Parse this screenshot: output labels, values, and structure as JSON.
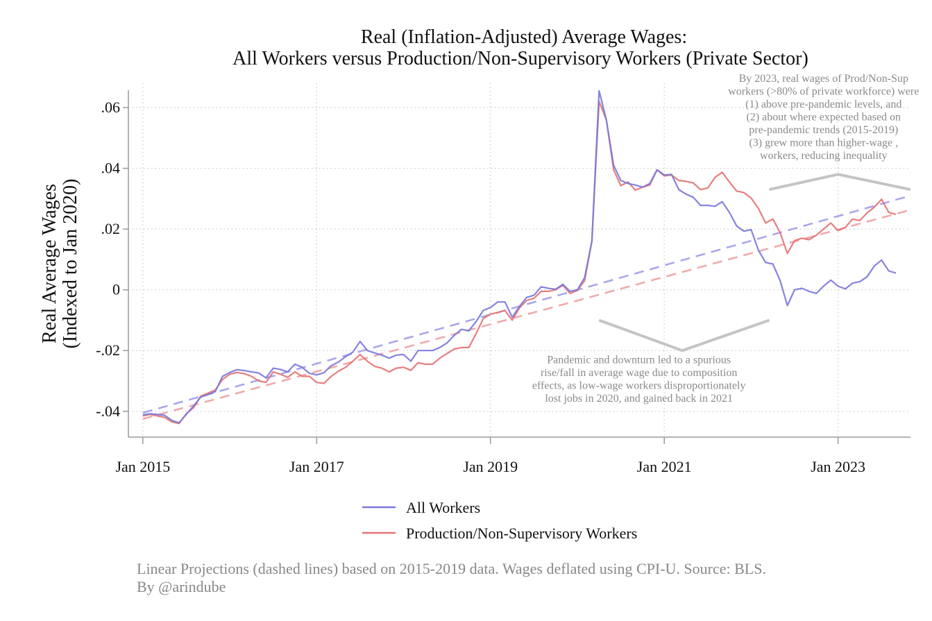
{
  "colors": {
    "all_workers": "#7b78db",
    "production": "#e57373",
    "all_workers_projection": "#a9a7ec",
    "production_projection": "#f0aaaa",
    "grid": "#c8c8c8",
    "axis": "#9a9a9a",
    "bracket": "#c4c4c4",
    "annotation": "#8a8a8a",
    "footer": "#888888"
  },
  "chart_data": {
    "type": "line",
    "title": [
      "Real (Inflation-Adjusted) Average Wages:",
      "All Workers versus Production/Non-Supervisory Workers (Private Sector)"
    ],
    "ylabel": [
      "Real Average Wages",
      "(Indexed to Jan 2020)"
    ],
    "xlabel": "",
    "x_unit": "month (Jan 2015 = 0)",
    "xlim": [
      -2,
      106
    ],
    "ylim": [
      -0.0485,
      0.068
    ],
    "grid": true,
    "legend_position": "bottom",
    "x_ticks": [
      {
        "value": 0,
        "label": "Jan 2015"
      },
      {
        "value": 24,
        "label": "Jan 2017"
      },
      {
        "value": 48,
        "label": "Jan 2019"
      },
      {
        "value": 72,
        "label": "Jan 2021"
      },
      {
        "value": 96,
        "label": "Jan 2023"
      }
    ],
    "y_ticks": [
      {
        "value": -0.04,
        "label": "-.04"
      },
      {
        "value": -0.02,
        "label": "-.02"
      },
      {
        "value": 0,
        "label": "0"
      },
      {
        "value": 0.02,
        "label": ".02"
      },
      {
        "value": 0.04,
        "label": ".04"
      },
      {
        "value": 0.06,
        "label": ".06"
      }
    ],
    "series": [
      {
        "name": "All Workers",
        "x_start": 0,
        "values": [
          -0.0412,
          -0.0408,
          -0.041,
          -0.0413,
          -0.043,
          -0.0438,
          -0.041,
          -0.0382,
          -0.0353,
          -0.0345,
          -0.0335,
          -0.0285,
          -0.0272,
          -0.0263,
          -0.0266,
          -0.027,
          -0.0274,
          -0.029,
          -0.0258,
          -0.0262,
          -0.027,
          -0.0245,
          -0.0255,
          -0.0275,
          -0.028,
          -0.0273,
          -0.025,
          -0.0238,
          -0.022,
          -0.0205,
          -0.017,
          -0.02,
          -0.0208,
          -0.0215,
          -0.0225,
          -0.0215,
          -0.0213,
          -0.0235,
          -0.02,
          -0.02,
          -0.02,
          -0.019,
          -0.0175,
          -0.015,
          -0.013,
          -0.0135,
          -0.0105,
          -0.0068,
          -0.0058,
          -0.004,
          -0.004,
          -0.009,
          -0.0055,
          -0.0025,
          -0.0018,
          0.001,
          0.0005,
          0.0002,
          0.0018,
          -0.0005,
          0.0,
          0.004,
          0.016,
          0.0655,
          0.056,
          0.041,
          0.036,
          0.035,
          0.0345,
          0.0338,
          0.035,
          0.0395,
          0.0378,
          0.038,
          0.033,
          0.0315,
          0.0305,
          0.0278,
          0.0278,
          0.0275,
          0.029,
          0.0255,
          0.021,
          0.0193,
          0.0198,
          0.013,
          0.009,
          0.0085,
          0.003,
          -0.0052,
          0.0,
          0.0005,
          -0.0005,
          -0.0012,
          0.0012,
          0.0032,
          0.0012,
          0.0003,
          0.0022,
          0.0027,
          0.0043,
          0.0078,
          0.0098,
          0.0062,
          0.0055
        ]
      },
      {
        "name": "Production/Non-Supervisory Workers",
        "x_start": 0,
        "values": [
          -0.0415,
          -0.041,
          -0.0415,
          -0.042,
          -0.0435,
          -0.044,
          -0.0408,
          -0.0388,
          -0.035,
          -0.034,
          -0.033,
          -0.0295,
          -0.0278,
          -0.0272,
          -0.0276,
          -0.0285,
          -0.03,
          -0.0305,
          -0.027,
          -0.0278,
          -0.0288,
          -0.027,
          -0.0285,
          -0.0285,
          -0.0305,
          -0.0308,
          -0.0285,
          -0.0268,
          -0.0255,
          -0.0235,
          -0.0213,
          -0.0235,
          -0.0252,
          -0.0258,
          -0.027,
          -0.0258,
          -0.0255,
          -0.0265,
          -0.024,
          -0.0245,
          -0.0245,
          -0.0225,
          -0.021,
          -0.0195,
          -0.019,
          -0.019,
          -0.0145,
          -0.0095,
          -0.008,
          -0.0075,
          -0.0068,
          -0.01,
          -0.006,
          -0.0035,
          -0.0028,
          -0.0005,
          -0.0005,
          0.0,
          0.0015,
          -0.0012,
          -0.0002,
          0.003,
          0.016,
          0.062,
          0.056,
          0.0395,
          0.0343,
          0.0355,
          0.0328,
          0.0338,
          0.0345,
          0.0395,
          0.0375,
          0.0378,
          0.036,
          0.0357,
          0.0352,
          0.033,
          0.0335,
          0.037,
          0.0387,
          0.0355,
          0.0325,
          0.032,
          0.0302,
          0.0268,
          0.022,
          0.0233,
          0.0188,
          0.012,
          0.0162,
          0.017,
          0.0165,
          0.018,
          0.02,
          0.022,
          0.0195,
          0.0205,
          0.0233,
          0.0228,
          0.0253,
          0.0272,
          0.0298,
          0.0255,
          0.0248
        ]
      }
    ],
    "projections": [
      {
        "of": "All Workers",
        "style": "dashed",
        "points": [
          {
            "x": 0,
            "y": -0.0405
          },
          {
            "x": 106,
            "y": 0.031
          }
        ]
      },
      {
        "of": "Production/Non-Supervisory Workers",
        "style": "dashed",
        "points": [
          {
            "x": 0,
            "y": -0.0425
          },
          {
            "x": 106,
            "y": 0.0263
          }
        ]
      }
    ],
    "annotations": [
      {
        "id": "top-note",
        "lines": [
          "By 2023, real wages of Prod/Non-Sup",
          "workers (>80% of private workforce) were",
          "(1) above pre-pandemic levels, and",
          "(2) about where expected based on",
          "pre-pandemic trends (2015-2019)",
          "(3) grew more than higher-wage ,",
          "workers, reducing inequality"
        ],
        "anchor": {
          "x": 94,
          "y": 0.0685
        }
      },
      {
        "id": "bottom-note",
        "lines": [
          "Pandemic and downturn led to a spurious",
          "rise/fall in average wage due to composition",
          "effects, as low-wage workers disproportionately",
          "lost jobs in 2020, and gained back in 2021"
        ],
        "anchor": {
          "x": 68.5,
          "y": -0.0242
        }
      }
    ],
    "brackets": [
      {
        "id": "top-bracket",
        "points": [
          {
            "x": 86.5,
            "y": 0.033
          },
          {
            "x": 96,
            "y": 0.038
          },
          {
            "x": 106,
            "y": 0.033
          }
        ]
      },
      {
        "id": "bottom-bracket",
        "points": [
          {
            "x": 63,
            "y": -0.01
          },
          {
            "x": 74.5,
            "y": -0.02
          },
          {
            "x": 86.5,
            "y": -0.01
          }
        ]
      }
    ]
  },
  "legend": [
    {
      "label": "All Workers",
      "color_key": "all_workers"
    },
    {
      "label": "Production/Non-Supervisory Workers",
      "color_key": "production"
    }
  ],
  "footer": {
    "line1": "Linear Projections (dashed lines) based on 2015-2019 data. Wages deflated using CPI-U. Source: BLS.",
    "line2": "By @arindube"
  }
}
